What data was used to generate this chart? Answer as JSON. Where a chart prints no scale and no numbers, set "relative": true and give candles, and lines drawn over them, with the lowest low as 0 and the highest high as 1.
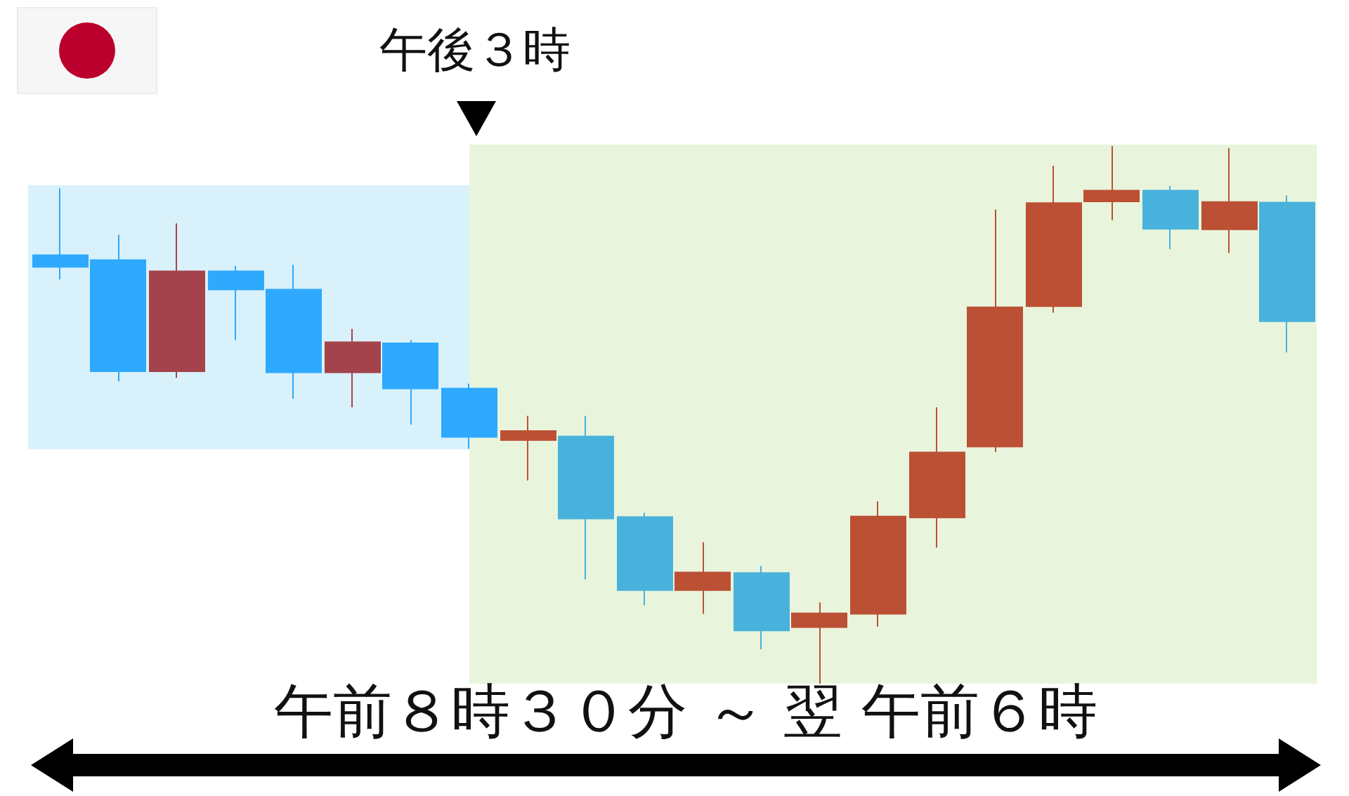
{
  "chart_data": {
    "type": "candlestick",
    "relative": true,
    "categories": [
      null,
      null,
      null,
      null,
      null,
      null,
      null,
      null,
      null,
      null,
      null,
      null,
      null,
      null,
      null,
      null,
      null,
      null,
      null,
      null,
      null,
      null
    ],
    "ohlc": [
      [
        0.797,
        0.921,
        0.752,
        0.775
      ],
      [
        0.788,
        0.835,
        0.562,
        0.581
      ],
      [
        0.581,
        0.856,
        0.569,
        0.767
      ],
      [
        0.767,
        0.777,
        0.639,
        0.733
      ],
      [
        0.733,
        0.779,
        0.53,
        0.579
      ],
      [
        0.579,
        0.66,
        0.514,
        0.635
      ],
      [
        0.633,
        0.639,
        0.482,
        0.549
      ],
      [
        0.549,
        0.558,
        0.437,
        0.459
      ],
      [
        0.453,
        0.498,
        0.378,
        0.47
      ],
      [
        0.46,
        0.498,
        0.194,
        0.307
      ],
      [
        0.31,
        0.318,
        0.146,
        0.174
      ],
      [
        0.174,
        0.263,
        0.13,
        0.207
      ],
      [
        0.206,
        0.219,
        0.064,
        0.099
      ],
      [
        0.105,
        0.151,
        0,
        0.131
      ],
      [
        0.13,
        0.339,
        0.106,
        0.311
      ],
      [
        0.309,
        0.514,
        0.253,
        0.43
      ],
      [
        0.441,
        0.882,
        0.431,
        0.7
      ],
      [
        0.702,
        0.963,
        0.69,
        0.894
      ],
      [
        0.897,
        1,
        0.862,
        0.917
      ],
      [
        0.917,
        0.926,
        0.808,
        0.846
      ],
      [
        0.845,
        0.996,
        0.801,
        0.896
      ],
      [
        0.895,
        0.908,
        0.616,
        0.674
      ]
    ],
    "colors": [
      "#2ea9fe",
      "#2ea9fe",
      "#a4434b",
      "#2ea9fe",
      "#2ea9fe",
      "#a4434b",
      "#2ea9fe",
      "#2ea9fe",
      "#bb5034",
      "#48b2dc",
      "#48b2dc",
      "#bb5034",
      "#48b2dc",
      "#bb5034",
      "#bb5034",
      "#bb5034",
      "#bb5034",
      "#bb5034",
      "#bb5034",
      "#48b2dc",
      "#bb5034",
      "#48b2dc"
    ],
    "annotations": [
      "午後３時",
      "午前８時３０分 ～ 翌 午前６時"
    ]
  }
}
